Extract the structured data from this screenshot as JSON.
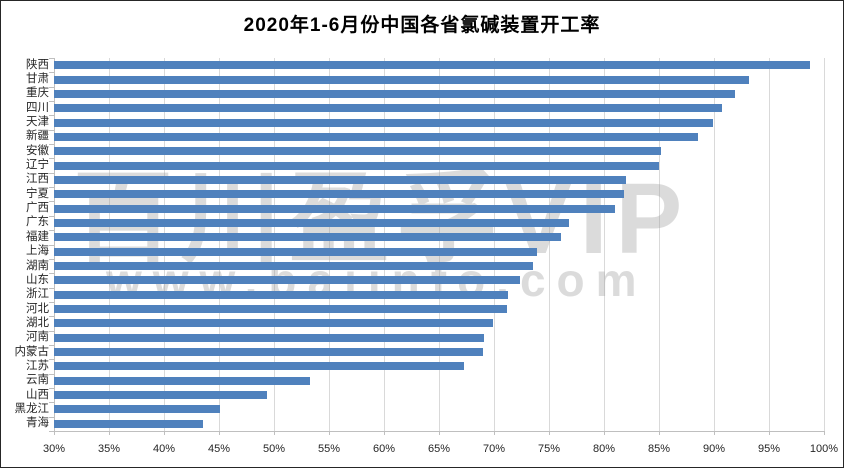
{
  "title": "2020年1-6月份中国各省氯碱装置开工率",
  "watermark": {
    "line1": "百川盈孚VIP",
    "line2": "www.baiinfo.com"
  },
  "colors": {
    "bar": "#4f81bd",
    "gridline": "#d9d9d9",
    "axis_line": "#bfbfbf",
    "title_text": "#000000",
    "label_text": "#262626",
    "watermark": "#c6c6c6",
    "background": "#ffffff"
  },
  "chart_data": {
    "type": "bar",
    "orientation": "horizontal",
    "title": "2020年1-6月份中国各省氯碱装置开工率",
    "xlabel": "",
    "ylabel": "",
    "xlim": [
      30,
      100
    ],
    "grid": true,
    "value_unit": "%",
    "x_ticks": [
      "30%",
      "35%",
      "40%",
      "45%",
      "50%",
      "55%",
      "60%",
      "65%",
      "70%",
      "75%",
      "80%",
      "85%",
      "90%",
      "95%",
      "100%"
    ],
    "categories": [
      "陕西",
      "甘肃",
      "重庆",
      "四川",
      "天津",
      "新疆",
      "安徽",
      "辽宁",
      "江西",
      "宁夏",
      "广西",
      "广东",
      "福建",
      "上海",
      "湖南",
      "山东",
      "浙江",
      "河北",
      "湖北",
      "河南",
      "内蒙古",
      "江苏",
      "云南",
      "山西",
      "黑龙江",
      "青海"
    ],
    "values": [
      98.7,
      93.2,
      91.9,
      90.7,
      89.9,
      88.5,
      85.2,
      85.0,
      82.0,
      81.8,
      81.0,
      76.8,
      76.1,
      73.9,
      73.5,
      72.4,
      71.3,
      71.2,
      69.9,
      69.1,
      69.0,
      67.3,
      53.3,
      49.4,
      45.1,
      43.5
    ]
  }
}
